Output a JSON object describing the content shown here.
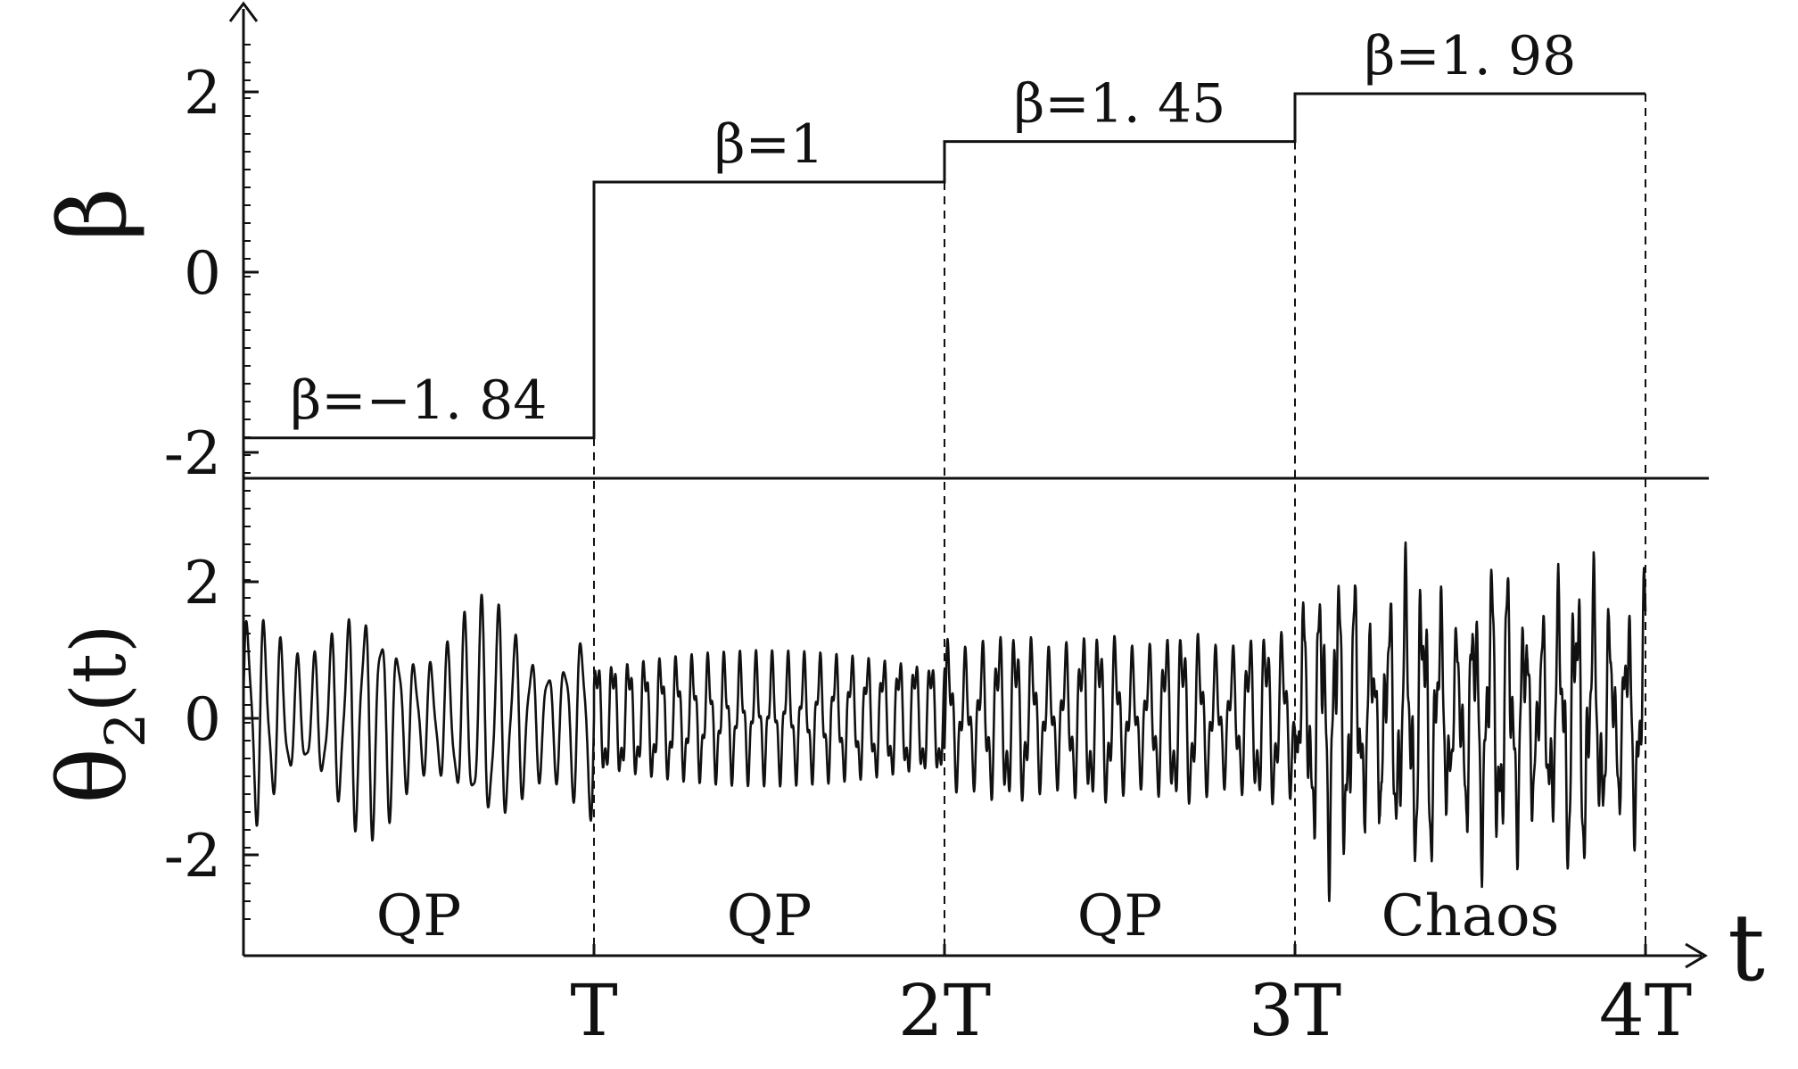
{
  "chart_data": [
    {
      "type": "line",
      "ylabel": "β",
      "xlabel": "",
      "ylim": [
        -2.35,
        2.95
      ],
      "yticks": [
        {
          "v": 2,
          "label": "2"
        },
        {
          "v": 0,
          "label": "0"
        },
        {
          "v": -2,
          "label": "-2"
        }
      ],
      "x": [
        0,
        1,
        1,
        2,
        2,
        3,
        3,
        4
      ],
      "values": [
        -1.84,
        -1.84,
        1,
        1,
        1.45,
        1.45,
        1.98,
        1.98
      ],
      "annotations": [
        {
          "text": "β=−1. 84",
          "x": 0.5
        },
        {
          "text": "β=1",
          "x": 1.5
        },
        {
          "text": "β=1. 45",
          "x": 2.5
        },
        {
          "text": "β=1. 98",
          "x": 3.5
        }
      ]
    },
    {
      "type": "line",
      "ylabel": "θ",
      "ylabel_sub": "2",
      "ylabel_tail": "(t)",
      "xlabel": "t",
      "ylim": [
        -3.45,
        3.25
      ],
      "xlim": [
        0,
        4
      ],
      "yticks": [
        {
          "v": 2,
          "label": "2"
        },
        {
          "v": 0,
          "label": "0"
        },
        {
          "v": -2,
          "label": "-2"
        }
      ],
      "xticks": [
        {
          "v": 1,
          "label": "T"
        },
        {
          "v": 2,
          "label": "2T"
        },
        {
          "v": 3,
          "label": "3T"
        },
        {
          "v": 4,
          "label": "4T"
        }
      ],
      "segments": [
        {
          "x0": 0,
          "x1": 1,
          "regime": "QP",
          "beta": -1.84,
          "amplitude_min": -1.85,
          "amplitude_max": 1.85
        },
        {
          "x0": 1,
          "x1": 2,
          "regime": "QP",
          "beta": 1,
          "amplitude_min": -1.0,
          "amplitude_max": 1.0
        },
        {
          "x0": 2,
          "x1": 3,
          "regime": "QP",
          "beta": 1.45,
          "amplitude_min": -1.5,
          "amplitude_max": 1.5
        },
        {
          "x0": 3,
          "x1": 4,
          "regime": "Chaos",
          "beta": 1.98,
          "amplitude_min": -2.7,
          "amplitude_max": 2.7
        }
      ]
    }
  ]
}
